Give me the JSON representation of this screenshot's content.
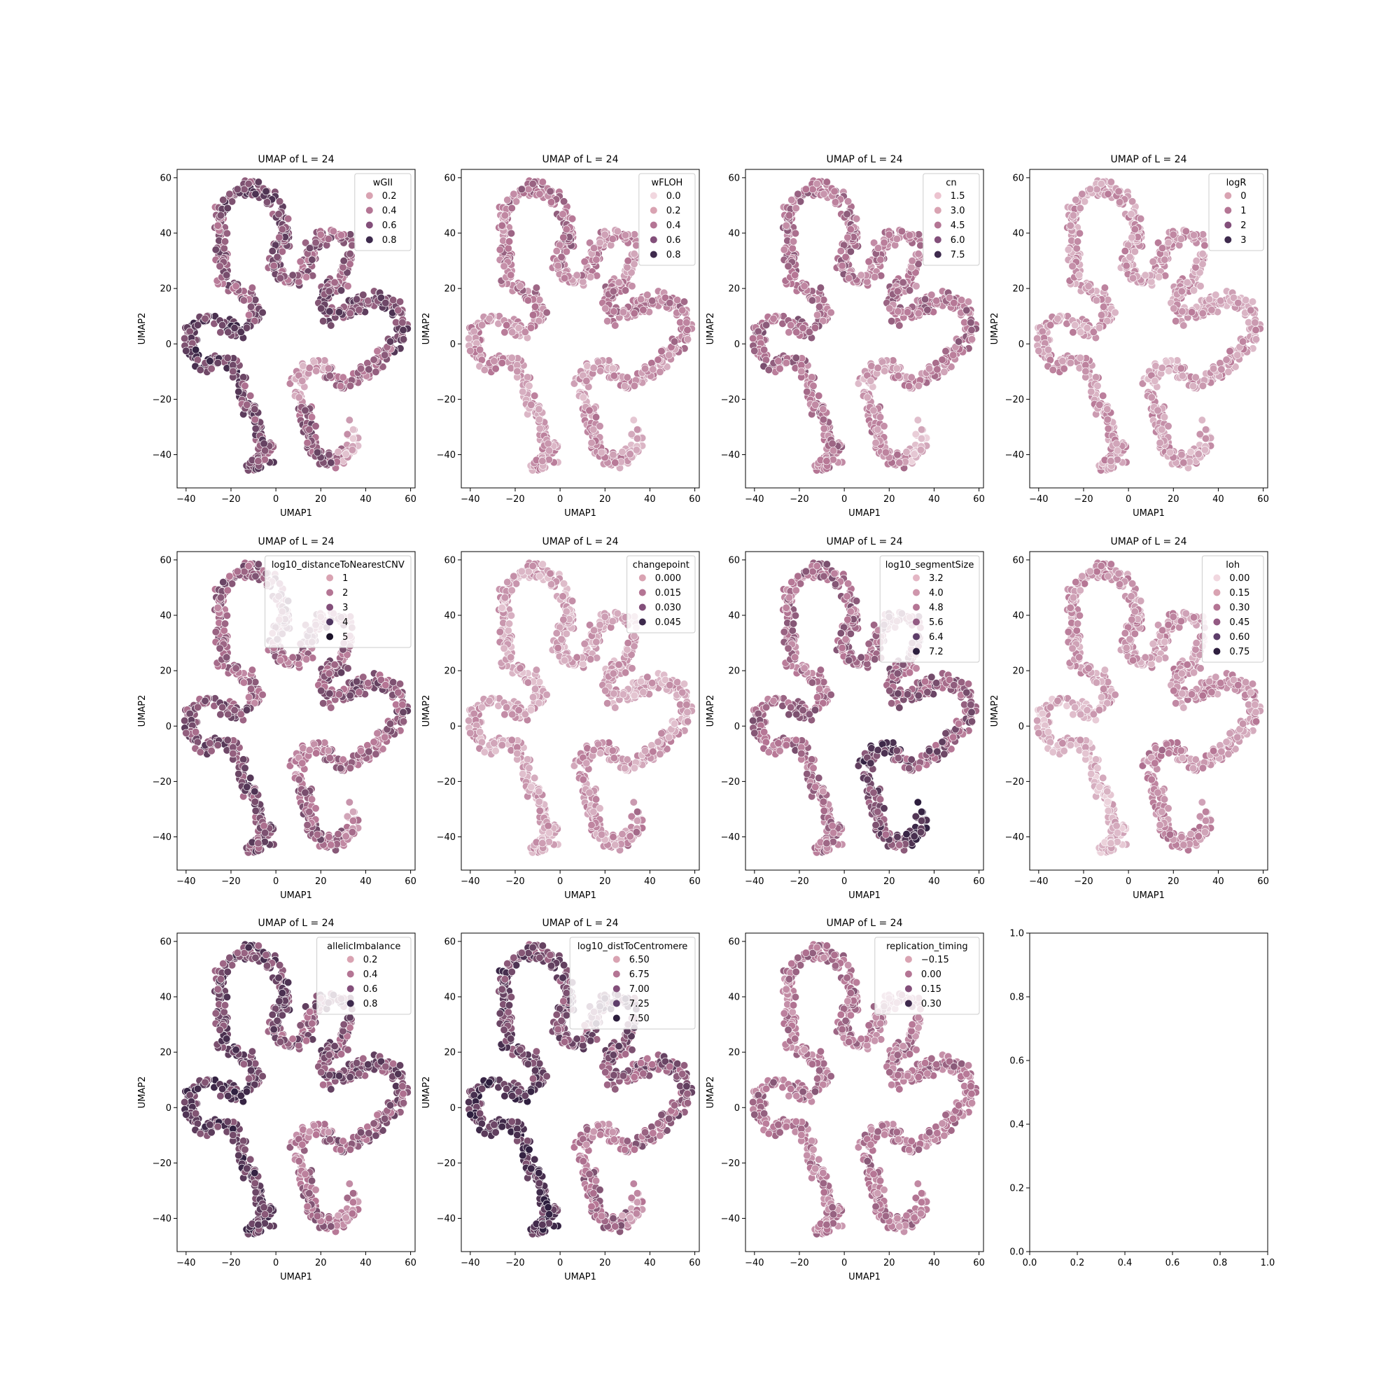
{
  "figure": {
    "background": "#ffffff"
  },
  "colors": {
    "palette_light": "#ecd3dc",
    "palette_mid": "#b57594",
    "palette_dark": "#2d1e3e"
  },
  "chart_data": [
    {
      "type": "scatter",
      "title": "UMAP of L = 24",
      "xlabel": "UMAP1",
      "ylabel": "UMAP2",
      "xlim": [
        -44,
        62
      ],
      "ylim": [
        -52,
        63
      ],
      "xticks": [
        "−40",
        "−20",
        "0",
        "20",
        "40",
        "60"
      ],
      "yticks": [
        "−40",
        "−20",
        "0",
        "20",
        "40",
        "60"
      ],
      "grid": false,
      "legend": {
        "title": "wGII",
        "placement": "top-right",
        "entries": [
          {
            "label": "0.2",
            "color": "#d9a3b2"
          },
          {
            "label": "0.4",
            "color": "#b47594"
          },
          {
            "label": "0.6",
            "color": "#834f7a"
          },
          {
            "label": "0.8",
            "color": "#3e2a4d"
          }
        ]
      },
      "shape": "umap-loop-curve",
      "point_count": 1000,
      "color_mode": "by-segment",
      "segment_levels": [
        0.7,
        0.8,
        0.62,
        0.72,
        0.6,
        0.72,
        0.55,
        0.3,
        0.62,
        0.2
      ]
    },
    {
      "type": "scatter",
      "title": "UMAP of L = 24",
      "xlabel": "UMAP1",
      "ylabel": "UMAP2",
      "xlim": [
        -44,
        62
      ],
      "ylim": [
        -52,
        63
      ],
      "xticks": [
        "−40",
        "−20",
        "0",
        "20",
        "40",
        "60"
      ],
      "yticks": [
        "−40",
        "−20",
        "0",
        "20",
        "40",
        "60"
      ],
      "grid": false,
      "legend": {
        "title": "wFLOH",
        "placement": "top-right",
        "entries": [
          {
            "label": "0.0",
            "color": "#f1d7df"
          },
          {
            "label": "0.2",
            "color": "#d9a3b2"
          },
          {
            "label": "0.4",
            "color": "#b47594"
          },
          {
            "label": "0.6",
            "color": "#834f7a"
          },
          {
            "label": "0.8",
            "color": "#3e2a4d"
          }
        ]
      },
      "shape": "umap-loop-curve",
      "point_count": 1000,
      "color_mode": "by-segment",
      "segment_levels": [
        0.3,
        0.35,
        0.45,
        0.5,
        0.4,
        0.45,
        0.35,
        0.25,
        0.35,
        0.18
      ]
    },
    {
      "type": "scatter",
      "title": "UMAP of L = 24",
      "xlabel": "UMAP1",
      "ylabel": "UMAP2",
      "xlim": [
        -44,
        62
      ],
      "ylim": [
        -52,
        63
      ],
      "xticks": [
        "−40",
        "−20",
        "0",
        "20",
        "40",
        "60"
      ],
      "yticks": [
        "−40",
        "−20",
        "0",
        "20",
        "40",
        "60"
      ],
      "grid": false,
      "legend": {
        "title": "cn",
        "placement": "top-right",
        "entries": [
          {
            "label": "1.5",
            "color": "#ecc3cf"
          },
          {
            "label": "3.0",
            "color": "#d9a3b2"
          },
          {
            "label": "4.5",
            "color": "#b47594"
          },
          {
            "label": "6.0",
            "color": "#834f7a"
          },
          {
            "label": "7.5",
            "color": "#3e2a4d"
          }
        ]
      },
      "shape": "umap-loop-curve",
      "point_count": 1000,
      "color_mode": "by-segment",
      "segment_levels": [
        0.5,
        0.55,
        0.5,
        0.5,
        0.45,
        0.5,
        0.4,
        0.25,
        0.4,
        0.15
      ]
    },
    {
      "type": "scatter",
      "title": "UMAP of L = 24",
      "xlabel": "UMAP1",
      "ylabel": "UMAP2",
      "xlim": [
        -44,
        62
      ],
      "ylim": [
        -52,
        63
      ],
      "xticks": [
        "−40",
        "−20",
        "0",
        "20",
        "40",
        "60"
      ],
      "yticks": [
        "−40",
        "−20",
        "0",
        "20",
        "40",
        "60"
      ],
      "grid": false,
      "legend": {
        "title": "logR",
        "placement": "top-right",
        "entries": [
          {
            "label": "0",
            "color": "#d9a3b2"
          },
          {
            "label": "1",
            "color": "#b47594"
          },
          {
            "label": "2",
            "color": "#834f7a"
          },
          {
            "label": "3",
            "color": "#3e2a4d"
          }
        ]
      },
      "shape": "umap-loop-curve",
      "point_count": 1000,
      "color_mode": "by-segment",
      "segment_levels": [
        0.3,
        0.3,
        0.3,
        0.3,
        0.3,
        0.3,
        0.3,
        0.25,
        0.3,
        0.25
      ]
    },
    {
      "type": "scatter",
      "title": "UMAP of L = 24",
      "xlabel": "UMAP1",
      "ylabel": "UMAP2",
      "xlim": [
        -44,
        62
      ],
      "ylim": [
        -52,
        63
      ],
      "xticks": [
        "−40",
        "−20",
        "0",
        "20",
        "40",
        "60"
      ],
      "yticks": [
        "−40",
        "−20",
        "0",
        "20",
        "40",
        "60"
      ],
      "grid": false,
      "legend": {
        "title": "log10_distanceToNearestCNV",
        "placement": "top-right",
        "entries": [
          {
            "label": "1",
            "color": "#d9a3b2"
          },
          {
            "label": "2",
            "color": "#b47594"
          },
          {
            "label": "3",
            "color": "#834f7a"
          },
          {
            "label": "4",
            "color": "#4e3560"
          },
          {
            "label": "5",
            "color": "#1b1228"
          }
        ]
      },
      "shape": "umap-loop-curve",
      "point_count": 1000,
      "color_mode": "by-segment",
      "segment_levels": [
        0.7,
        0.7,
        0.55,
        0.6,
        0.55,
        0.65,
        0.55,
        0.45,
        0.6,
        0.4
      ]
    },
    {
      "type": "scatter",
      "title": "UMAP of L = 24",
      "xlabel": "UMAP1",
      "ylabel": "UMAP2",
      "xlim": [
        -44,
        62
      ],
      "ylim": [
        -52,
        63
      ],
      "xticks": [
        "−40",
        "−20",
        "0",
        "20",
        "40",
        "60"
      ],
      "yticks": [
        "−40",
        "−20",
        "0",
        "20",
        "40",
        "60"
      ],
      "grid": false,
      "legend": {
        "title": "changepoint",
        "placement": "top-right",
        "entries": [
          {
            "label": "0.000",
            "color": "#d9a3b2"
          },
          {
            "label": "0.015",
            "color": "#b47594"
          },
          {
            "label": "0.030",
            "color": "#834f7a"
          },
          {
            "label": "0.045",
            "color": "#3e2a4d"
          }
        ]
      },
      "shape": "umap-loop-curve",
      "point_count": 1000,
      "color_mode": "by-segment",
      "segment_levels": [
        0.25,
        0.25,
        0.25,
        0.25,
        0.25,
        0.25,
        0.3,
        0.35,
        0.3,
        0.4
      ]
    },
    {
      "type": "scatter",
      "title": "UMAP of L = 24",
      "xlabel": "UMAP1",
      "ylabel": "UMAP2",
      "xlim": [
        -44,
        62
      ],
      "ylim": [
        -52,
        63
      ],
      "xticks": [
        "−40",
        "−20",
        "0",
        "20",
        "40",
        "60"
      ],
      "yticks": [
        "−40",
        "−20",
        "0",
        "20",
        "40",
        "60"
      ],
      "grid": false,
      "legend": {
        "title": "log10_segmentSize",
        "placement": "top-right",
        "entries": [
          {
            "label": "3.2",
            "color": "#e4b6c4"
          },
          {
            "label": "4.0",
            "color": "#cf96ac"
          },
          {
            "label": "4.8",
            "color": "#b47594"
          },
          {
            "label": "5.6",
            "color": "#935a83"
          },
          {
            "label": "6.4",
            "color": "#5e3e6a"
          },
          {
            "label": "7.2",
            "color": "#2d1e3e"
          }
        ]
      },
      "shape": "umap-loop-curve",
      "point_count": 1000,
      "color_mode": "by-segment",
      "segment_levels": [
        0.5,
        0.55,
        0.5,
        0.55,
        0.55,
        0.6,
        0.65,
        0.8,
        0.7,
        0.9
      ]
    },
    {
      "type": "scatter",
      "title": "UMAP of L = 24",
      "xlabel": "UMAP1",
      "ylabel": "UMAP2",
      "xlim": [
        -44,
        62
      ],
      "ylim": [
        -52,
        63
      ],
      "xticks": [
        "−40",
        "−20",
        "0",
        "20",
        "40",
        "60"
      ],
      "yticks": [
        "−40",
        "−20",
        "0",
        "20",
        "40",
        "60"
      ],
      "grid": false,
      "legend": {
        "title": "loh",
        "placement": "top-right",
        "entries": [
          {
            "label": "0.00",
            "color": "#f1d7df"
          },
          {
            "label": "0.15",
            "color": "#d9a3b2"
          },
          {
            "label": "0.30",
            "color": "#b47594"
          },
          {
            "label": "0.45",
            "color": "#935a83"
          },
          {
            "label": "0.60",
            "color": "#5e3e6a"
          },
          {
            "label": "0.75",
            "color": "#2d1e3e"
          }
        ]
      },
      "shape": "umap-loop-curve",
      "point_count": 1000,
      "color_mode": "by-segment",
      "segment_levels": [
        0.15,
        0.2,
        0.3,
        0.35,
        0.3,
        0.35,
        0.35,
        0.4,
        0.4,
        0.35
      ]
    },
    {
      "type": "scatter",
      "title": "UMAP of L = 24",
      "xlabel": "UMAP1",
      "ylabel": "UMAP2",
      "xlim": [
        -44,
        62
      ],
      "ylim": [
        -52,
        63
      ],
      "xticks": [
        "−40",
        "−20",
        "0",
        "20",
        "40",
        "60"
      ],
      "yticks": [
        "−40",
        "−20",
        "0",
        "20",
        "40",
        "60"
      ],
      "grid": false,
      "legend": {
        "title": "allelicImbalance",
        "placement": "top-right",
        "entries": [
          {
            "label": "0.2",
            "color": "#d9a3b2"
          },
          {
            "label": "0.4",
            "color": "#b47594"
          },
          {
            "label": "0.6",
            "color": "#834f7a"
          },
          {
            "label": "0.8",
            "color": "#3e2a4d"
          }
        ]
      },
      "shape": "umap-loop-curve",
      "point_count": 1000,
      "color_mode": "by-segment",
      "segment_levels": [
        0.82,
        0.82,
        0.75,
        0.75,
        0.65,
        0.7,
        0.6,
        0.45,
        0.55,
        0.4
      ]
    },
    {
      "type": "scatter",
      "title": "UMAP of L = 24",
      "xlabel": "UMAP1",
      "ylabel": "UMAP2",
      "xlim": [
        -44,
        62
      ],
      "ylim": [
        -52,
        63
      ],
      "xticks": [
        "−40",
        "−20",
        "0",
        "20",
        "40",
        "60"
      ],
      "yticks": [
        "−40",
        "−20",
        "0",
        "20",
        "40",
        "60"
      ],
      "grid": false,
      "legend": {
        "title": "log10_distToCentromere",
        "placement": "top-right",
        "entries": [
          {
            "label": "6.50",
            "color": "#d9a3b2"
          },
          {
            "label": "6.75",
            "color": "#b47594"
          },
          {
            "label": "7.00",
            "color": "#834f7a"
          },
          {
            "label": "7.25",
            "color": "#5e3e6a"
          },
          {
            "label": "7.50",
            "color": "#2d1e3e"
          }
        ]
      },
      "shape": "umap-loop-curve",
      "point_count": 1000,
      "color_mode": "by-segment",
      "segment_levels": [
        0.85,
        0.85,
        0.78,
        0.72,
        0.7,
        0.65,
        0.55,
        0.45,
        0.55,
        0.35
      ]
    },
    {
      "type": "scatter",
      "title": "UMAP of L = 24",
      "xlabel": "UMAP1",
      "ylabel": "UMAP2",
      "xlim": [
        -44,
        62
      ],
      "ylim": [
        -52,
        63
      ],
      "xticks": [
        "−40",
        "−20",
        "0",
        "20",
        "40",
        "60"
      ],
      "yticks": [
        "−40",
        "−20",
        "0",
        "20",
        "40",
        "60"
      ],
      "grid": false,
      "legend": {
        "title": "replication_timing",
        "placement": "top-right",
        "entries": [
          {
            "label": "−0.15",
            "color": "#d9a3b2"
          },
          {
            "label": "0.00",
            "color": "#b47594"
          },
          {
            "label": "0.15",
            "color": "#834f7a"
          },
          {
            "label": "0.30",
            "color": "#3e2a4d"
          }
        ]
      },
      "shape": "umap-loop-curve",
      "point_count": 1000,
      "color_mode": "by-segment",
      "segment_levels": [
        0.45,
        0.5,
        0.45,
        0.5,
        0.45,
        0.5,
        0.45,
        0.5,
        0.45,
        0.5
      ]
    },
    {
      "type": "empty-axes",
      "title": "",
      "xlim": [
        0,
        1
      ],
      "ylim": [
        0,
        1
      ],
      "xticks": [
        "0.0",
        "0.2",
        "0.4",
        "0.6",
        "0.8",
        "1.0"
      ],
      "yticks": [
        "0.0",
        "0.2",
        "0.4",
        "0.6",
        "0.8",
        "1.0"
      ],
      "grid": false
    }
  ]
}
